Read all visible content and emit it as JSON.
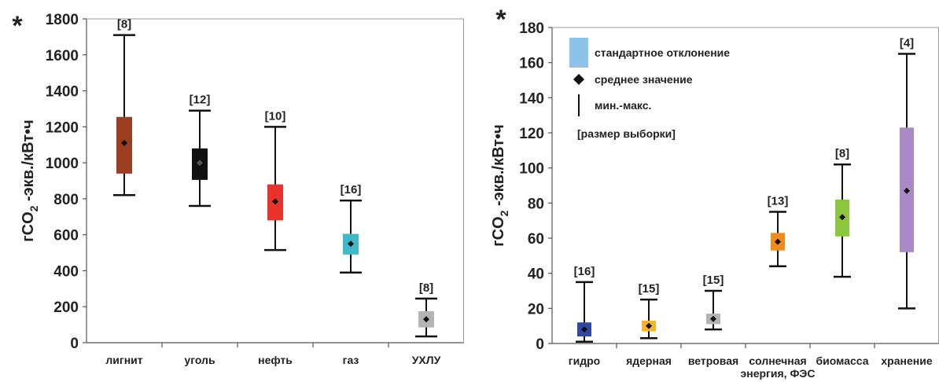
{
  "chart_data": [
    {
      "type": "boxplot",
      "asterisk": "*",
      "ylabel": "гCO₂ -экв./кВт•ч",
      "ylim": [
        0,
        1800
      ],
      "yticks": [
        0,
        200,
        400,
        600,
        800,
        1000,
        1200,
        1400,
        1600,
        1800
      ],
      "grid": false,
      "categories": [
        "лигнит",
        "уголь",
        "нефть",
        "газ",
        "УХЛУ"
      ],
      "series": [
        {
          "category": "лигнит",
          "min": 820,
          "q1": 940,
          "mean": 1110,
          "q3": 1255,
          "max": 1710,
          "sample_label": "[8]",
          "color": "#9a3d21"
        },
        {
          "category": "уголь",
          "min": 760,
          "q1": 905,
          "mean": 1000,
          "q3": 1080,
          "max": 1290,
          "sample_label": "[12]",
          "color": "#111111"
        },
        {
          "category": "нефть",
          "min": 515,
          "q1": 680,
          "mean": 785,
          "q3": 880,
          "max": 1200,
          "sample_label": "[10]",
          "color": "#e8332a"
        },
        {
          "category": "газ",
          "min": 390,
          "q1": 490,
          "mean": 550,
          "q3": 605,
          "max": 790,
          "sample_label": "[16]",
          "color": "#3fb8c9"
        },
        {
          "category": "УХЛУ",
          "min": 35,
          "q1": 85,
          "mean": 130,
          "q3": 175,
          "max": 245,
          "sample_label": "[8]",
          "color": "#b4b4b4"
        }
      ]
    },
    {
      "type": "boxplot",
      "asterisk": "*",
      "ylabel": "гCO₂ -экв./кВт•ч",
      "ylim": [
        0,
        180
      ],
      "yticks": [
        0,
        20,
        40,
        60,
        80,
        100,
        120,
        140,
        160,
        180
      ],
      "grid": false,
      "categories": [
        "гидро",
        "ядерная",
        "ветровая",
        "солнечная энергия, ФЭС",
        "биомасса",
        "хранение"
      ],
      "category_lines": [
        [
          "гидро"
        ],
        [
          "ядерная"
        ],
        [
          "ветровая"
        ],
        [
          "солнечная",
          "энергия, ФЭС"
        ],
        [
          "биомасса"
        ],
        [
          "хранение"
        ]
      ],
      "series": [
        {
          "category": "гидро",
          "min": 1,
          "q1": 4,
          "mean": 8,
          "q3": 12,
          "max": 35,
          "sample_label": "[16]",
          "color": "#2e4a9e"
        },
        {
          "category": "ядерная",
          "min": 3,
          "q1": 7,
          "mean": 10,
          "q3": 13,
          "max": 25,
          "sample_label": "[15]",
          "color": "#f7b32b"
        },
        {
          "category": "ветровая",
          "min": 8,
          "q1": 11,
          "mean": 14,
          "q3": 17,
          "max": 30,
          "sample_label": "[15]",
          "color": "#b4b4b4"
        },
        {
          "category": "солнечная энергия, ФЭС",
          "min": 44,
          "q1": 53,
          "mean": 58,
          "q3": 63,
          "max": 75,
          "sample_label": "[13]",
          "color": "#f08c1e"
        },
        {
          "category": "биомасса",
          "min": 38,
          "q1": 61,
          "mean": 72,
          "q3": 82,
          "max": 102,
          "sample_label": "[8]",
          "color": "#8cc63f"
        },
        {
          "category": "хранение",
          "min": 20,
          "q1": 52,
          "mean": 87,
          "q3": 123,
          "max": 165,
          "sample_label": "[4]",
          "color": "#a98ac4"
        }
      ],
      "legend": {
        "placement": "top-left",
        "items": [
          {
            "kind": "box",
            "label": "стандартное отклонение",
            "color": "#8dc3ea"
          },
          {
            "kind": "diamond",
            "label": "среднее значение"
          },
          {
            "kind": "line",
            "label": "мин.-макс."
          },
          {
            "kind": "text",
            "label": "[размер выборки]"
          }
        ]
      }
    }
  ]
}
